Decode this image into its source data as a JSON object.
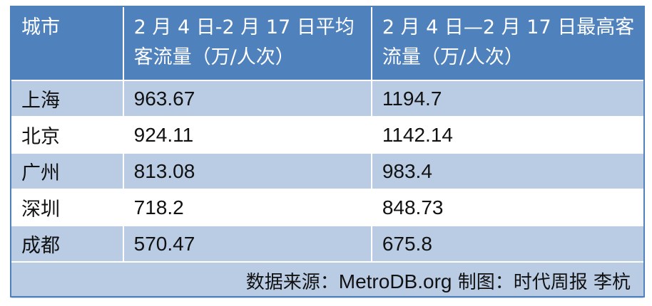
{
  "table": {
    "headers": [
      "城市",
      "2 月 4 日-2 月 17 日平均客流量（万/人次）",
      "2 月 4 日—2 月 17 日最高客流量（万/人次）"
    ],
    "rows": [
      {
        "city": "上海",
        "avg": "963.67",
        "max": "1194.7"
      },
      {
        "city": "北京",
        "avg": "924.11",
        "max": "1142.14"
      },
      {
        "city": "广州",
        "avg": "813.08",
        "max": "983.4"
      },
      {
        "city": "深圳",
        "avg": "718.2",
        "max": "848.73"
      },
      {
        "city": "成都",
        "avg": "570.47",
        "max": "675.8"
      }
    ],
    "footer": {
      "prefix": "数据来源：",
      "source": "MetroDB.org",
      "suffix": " 制图：时代周报  李杭"
    }
  },
  "colors": {
    "header_bg": "#4f81bd",
    "shade_row_bg": "#b9cce4",
    "plain_row_bg": "#ffffff"
  }
}
